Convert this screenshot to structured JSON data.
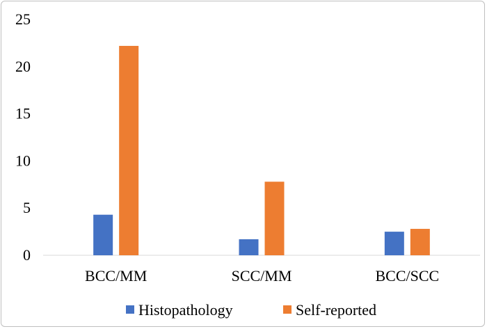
{
  "chart_data": {
    "type": "bar",
    "title": "",
    "xlabel": "",
    "ylabel": "",
    "ylim": [
      0,
      25
    ],
    "yticks": [
      0,
      5,
      10,
      15,
      20,
      25
    ],
    "grid": false,
    "legend_position": "bottom",
    "categories": [
      "BCC/MM",
      "SCC/MM",
      "BCC/SCC"
    ],
    "series": [
      {
        "name": "Histopathology",
        "color": "#4472C4",
        "values": [
          4.3,
          1.7,
          2.5
        ]
      },
      {
        "name": "Self-reported",
        "color": "#ED7D31",
        "values": [
          22.2,
          7.8,
          2.8
        ]
      }
    ]
  }
}
